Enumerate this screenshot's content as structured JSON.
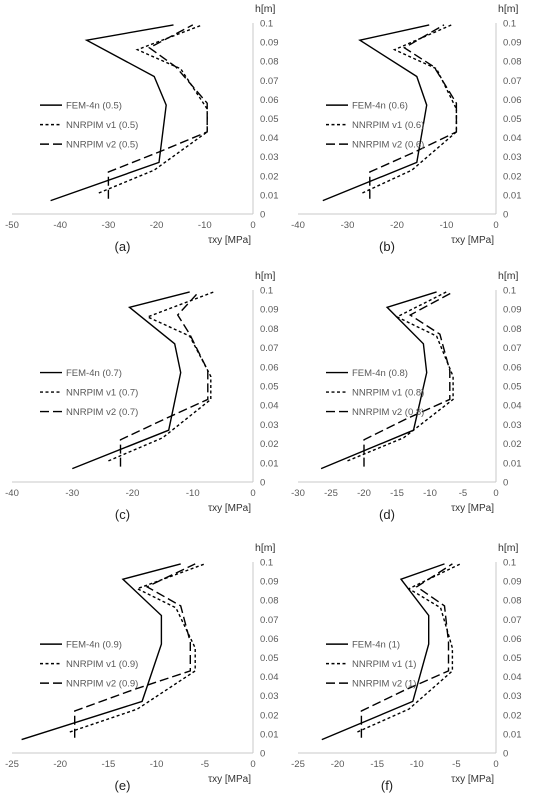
{
  "chart_data": [
    {
      "type": "line",
      "panel_label": "(a)",
      "xlabel": "τxy [MPa]",
      "ylabel": "h[m]",
      "xlim": [
        -50,
        0
      ],
      "ylim": [
        0,
        0.1
      ],
      "xticks": [
        "-50",
        "-40",
        "-30",
        "-20",
        "-10",
        "0"
      ],
      "yticks": [
        "0",
        "0.01",
        "0.02",
        "0.03",
        "0.04",
        "0.05",
        "0.06",
        "0.07",
        "0.08",
        "0.09",
        "0.1"
      ],
      "legend": "left",
      "series": [
        {
          "name": "FEM-4n (0.5)",
          "style": "solid",
          "x": [
            -42.0,
            -19.5,
            -18.0,
            -20.5,
            -34.5,
            -16.5
          ],
          "y": [
            0.007,
            0.027,
            0.057,
            0.072,
            0.091,
            0.099
          ]
        },
        {
          "name": "NNRPIM v1 (0.5)",
          "style": "dotted",
          "x": [
            -32.0,
            -20.5,
            -9.5,
            -9.5,
            -15.0,
            -24.0,
            -10.5
          ],
          "y": [
            0.011,
            0.023,
            0.043,
            0.055,
            0.076,
            0.086,
            0.099
          ]
        },
        {
          "name": "NNRPIM v2 (0.5)",
          "style": "dashed",
          "x": [
            -30.0,
            -30.0,
            -19.0,
            -9.5,
            -9.5,
            -16.0,
            -21.5,
            -12.5
          ],
          "y": [
            0.008,
            0.022,
            0.033,
            0.043,
            0.058,
            0.077,
            0.087,
            0.099
          ]
        }
      ]
    },
    {
      "type": "line",
      "panel_label": "(b)",
      "xlabel": "τxy [MPa]",
      "ylabel": "h[m]",
      "xlim": [
        -40,
        0
      ],
      "ylim": [
        0,
        0.1
      ],
      "xticks": [
        "-40",
        "-30",
        "-20",
        "-10",
        "0"
      ],
      "yticks": [
        "0",
        "0.01",
        "0.02",
        "0.03",
        "0.04",
        "0.05",
        "0.06",
        "0.07",
        "0.08",
        "0.09",
        "0.1"
      ],
      "legend": "left",
      "series": [
        {
          "name": "FEM-4n (0.6)",
          "style": "solid",
          "x": [
            -35.0,
            -16.0,
            -14.0,
            -16.0,
            -27.5,
            -13.5
          ],
          "y": [
            0.007,
            0.027,
            0.057,
            0.072,
            0.091,
            0.099
          ]
        },
        {
          "name": "NNRPIM v1 (0.6)",
          "style": "dotted",
          "x": [
            -27.0,
            -17.0,
            -8.0,
            -8.0,
            -12.0,
            -20.5,
            -9.0
          ],
          "y": [
            0.011,
            0.023,
            0.043,
            0.055,
            0.076,
            0.086,
            0.099
          ]
        },
        {
          "name": "NNRPIM v2 (0.6)",
          "style": "dashed",
          "x": [
            -25.5,
            -25.5,
            -16.0,
            -8.0,
            -8.0,
            -12.5,
            -18.5,
            -10.5
          ],
          "y": [
            0.008,
            0.022,
            0.033,
            0.043,
            0.058,
            0.077,
            0.087,
            0.099
          ]
        }
      ]
    },
    {
      "type": "line",
      "panel_label": "(c)",
      "xlabel": "τxy [MPa]",
      "ylabel": "h[m]",
      "xlim": [
        -40,
        0
      ],
      "ylim": [
        0,
        0.1
      ],
      "xticks": [
        "-40",
        "-30",
        "-20",
        "-10",
        "0"
      ],
      "yticks": [
        "0",
        "0.01",
        "0.02",
        "0.03",
        "0.04",
        "0.05",
        "0.06",
        "0.07",
        "0.08",
        "0.09",
        "0.1"
      ],
      "legend": "left",
      "series": [
        {
          "name": "FEM-4n (0.7)",
          "style": "solid",
          "x": [
            -30.0,
            -14.0,
            -12.0,
            -13.0,
            -20.5,
            -10.5
          ],
          "y": [
            0.007,
            0.027,
            0.057,
            0.072,
            0.091,
            0.099
          ]
        },
        {
          "name": "NNRPIM v1 (0.7)",
          "style": "dotted",
          "x": [
            -24.0,
            -15.0,
            -7.0,
            -7.0,
            -10.5,
            -17.5,
            -6.5
          ],
          "y": [
            0.011,
            0.023,
            0.043,
            0.055,
            0.076,
            0.086,
            0.099
          ]
        },
        {
          "name": "NNRPIM v2 (0.7)",
          "style": "dashed",
          "x": [
            -22.0,
            -22.0,
            -14.5,
            -7.5,
            -7.5,
            -10.5,
            -12.5,
            -9.0
          ],
          "y": [
            0.008,
            0.022,
            0.033,
            0.043,
            0.058,
            0.077,
            0.087,
            0.099
          ]
        }
      ]
    },
    {
      "type": "line",
      "panel_label": "(d)",
      "xlabel": "τxy [MPa]",
      "ylabel": "h[m]",
      "xlim": [
        -30,
        0
      ],
      "ylim": [
        0,
        0.1
      ],
      "xticks": [
        "-30",
        "-25",
        "-20",
        "-15",
        "-10",
        "-5",
        "0"
      ],
      "yticks": [
        "0",
        "0.01",
        "0.02",
        "0.03",
        "0.04",
        "0.05",
        "0.06",
        "0.07",
        "0.08",
        "0.09",
        "0.1"
      ],
      "legend": "left",
      "series": [
        {
          "name": "FEM-4n (0.8)",
          "style": "solid",
          "x": [
            -26.5,
            -12.5,
            -10.5,
            -11.0,
            -16.5,
            -9.0
          ],
          "y": [
            0.007,
            0.027,
            0.057,
            0.072,
            0.091,
            0.099
          ]
        },
        {
          "name": "NNRPIM v1 (0.8)",
          "style": "dotted",
          "x": [
            -22.5,
            -14.0,
            -6.5,
            -6.5,
            -9.0,
            -15.0,
            -7.5
          ],
          "y": [
            0.011,
            0.023,
            0.043,
            0.055,
            0.076,
            0.086,
            0.099
          ]
        },
        {
          "name": "NNRPIM v2 (0.8)",
          "style": "dashed",
          "x": [
            -20.0,
            -20.0,
            -13.5,
            -7.0,
            -7.0,
            -8.5,
            -13.0,
            -6.5
          ],
          "y": [
            0.008,
            0.022,
            0.033,
            0.043,
            0.058,
            0.077,
            0.087,
            0.099
          ]
        }
      ]
    },
    {
      "type": "line",
      "panel_label": "(e)",
      "xlabel": "τxy [MPa]",
      "ylabel": "h[m]",
      "xlim": [
        -25,
        0
      ],
      "ylim": [
        0,
        0.1
      ],
      "xticks": [
        "-25",
        "-20",
        "-15",
        "-10",
        "-5",
        "0"
      ],
      "yticks": [
        "0",
        "0.01",
        "0.02",
        "0.03",
        "0.04",
        "0.05",
        "0.06",
        "0.07",
        "0.08",
        "0.09",
        "0.1"
      ],
      "legend": "left",
      "series": [
        {
          "name": "FEM-4n (0.9)",
          "style": "solid",
          "x": [
            -24.0,
            -11.5,
            -9.5,
            -9.5,
            -13.5,
            -7.5
          ],
          "y": [
            0.007,
            0.027,
            0.057,
            0.072,
            0.091,
            0.099
          ]
        },
        {
          "name": "NNRPIM v1 (0.9)",
          "style": "dotted",
          "x": [
            -19.0,
            -12.0,
            -6.0,
            -6.0,
            -8.0,
            -12.0,
            -5.0
          ],
          "y": [
            0.011,
            0.023,
            0.043,
            0.055,
            0.076,
            0.086,
            0.099
          ]
        },
        {
          "name": "NNRPIM v2 (0.9)",
          "style": "dashed",
          "x": [
            -18.5,
            -18.5,
            -12.5,
            -6.5,
            -6.5,
            -7.5,
            -11.0,
            -6.0
          ],
          "y": [
            0.008,
            0.022,
            0.033,
            0.043,
            0.058,
            0.077,
            0.087,
            0.099
          ]
        }
      ]
    },
    {
      "type": "line",
      "panel_label": "(f)",
      "xlabel": "τxy [MPa]",
      "ylabel": "h[m]",
      "xlim": [
        -25,
        0
      ],
      "ylim": [
        0,
        0.1
      ],
      "xticks": [
        "-25",
        "-20",
        "-15",
        "-10",
        "-5",
        "0"
      ],
      "yticks": [
        "0",
        "0.01",
        "0.02",
        "0.03",
        "0.04",
        "0.05",
        "0.06",
        "0.07",
        "0.08",
        "0.09",
        "0.1"
      ],
      "legend": "left",
      "series": [
        {
          "name": "FEM-4n (1)",
          "style": "solid",
          "x": [
            -22.0,
            -10.5,
            -8.5,
            -8.5,
            -12.0,
            -6.5
          ],
          "y": [
            0.007,
            0.027,
            0.057,
            0.072,
            0.091,
            0.099
          ]
        },
        {
          "name": "NNRPIM v1 (1)",
          "style": "dotted",
          "x": [
            -17.5,
            -11.0,
            -5.5,
            -5.5,
            -7.0,
            -11.0,
            -4.5
          ],
          "y": [
            0.011,
            0.023,
            0.043,
            0.055,
            0.076,
            0.086,
            0.099
          ]
        },
        {
          "name": "NNRPIM v2 (1)",
          "style": "dashed",
          "x": [
            -17.0,
            -17.0,
            -11.5,
            -6.0,
            -6.0,
            -6.5,
            -10.0,
            -5.5
          ],
          "y": [
            0.008,
            0.022,
            0.033,
            0.043,
            0.058,
            0.077,
            0.087,
            0.099
          ]
        }
      ]
    }
  ]
}
